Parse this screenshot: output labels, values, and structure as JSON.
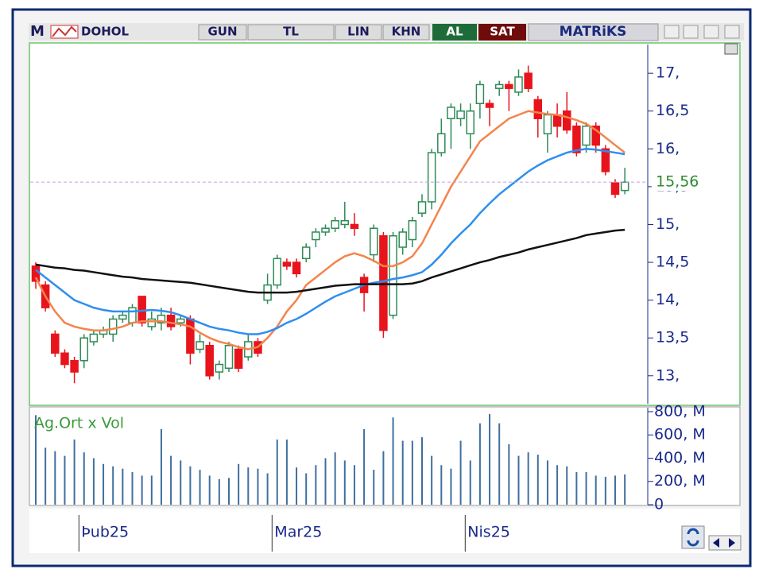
{
  "toolbar": {
    "logo": "M",
    "symbol": "DOHOL",
    "buttons": [
      "GUN",
      "TL",
      "LIN",
      "KHN"
    ],
    "buy": "AL",
    "sell": "SAT",
    "brand": "MATRiKS"
  },
  "chart_data": [
    {
      "type": "candlestick",
      "categories": [
        null,
        null,
        "Þub25",
        null,
        null,
        null,
        null,
        null,
        null,
        null,
        null,
        null,
        null,
        null,
        null,
        null,
        null,
        null,
        null,
        null,
        null,
        null,
        "Mar25",
        null,
        null,
        null,
        null,
        null,
        null,
        null,
        null,
        null,
        null,
        null,
        null,
        null,
        null,
        null,
        null,
        null,
        null,
        null,
        "Nis25",
        null,
        null,
        null,
        null,
        null,
        null,
        null,
        null,
        null,
        null,
        null,
        null,
        null,
        null,
        null,
        null,
        null,
        null,
        null
      ],
      "ohlc": [
        [
          14.45,
          14.5,
          14.15,
          14.25
        ],
        [
          14.2,
          14.25,
          13.85,
          13.9
        ],
        [
          13.55,
          13.6,
          13.25,
          13.3
        ],
        [
          13.3,
          13.35,
          13.1,
          13.15
        ],
        [
          13.2,
          13.25,
          12.9,
          13.05
        ],
        [
          13.2,
          13.55,
          13.1,
          13.5
        ],
        [
          13.45,
          13.6,
          13.4,
          13.55
        ],
        [
          13.55,
          13.65,
          13.5,
          13.6
        ],
        [
          13.55,
          13.8,
          13.45,
          13.75
        ],
        [
          13.75,
          13.85,
          13.7,
          13.8
        ],
        [
          13.7,
          13.95,
          13.65,
          13.9
        ],
        [
          14.05,
          14.05,
          13.65,
          13.7
        ],
        [
          13.65,
          13.85,
          13.6,
          13.75
        ],
        [
          13.7,
          13.9,
          13.6,
          13.8
        ],
        [
          13.8,
          13.9,
          13.6,
          13.65
        ],
        [
          13.7,
          13.8,
          13.65,
          13.75
        ],
        [
          13.75,
          13.8,
          13.15,
          13.3
        ],
        [
          13.35,
          13.55,
          13.3,
          13.45
        ],
        [
          13.4,
          13.45,
          12.95,
          13.0
        ],
        [
          13.05,
          13.2,
          12.95,
          13.15
        ],
        [
          13.1,
          13.45,
          13.05,
          13.4
        ],
        [
          13.35,
          13.4,
          13.05,
          13.1
        ],
        [
          13.25,
          13.55,
          13.2,
          13.45
        ],
        [
          13.45,
          13.5,
          13.25,
          13.3
        ],
        [
          14.0,
          14.35,
          13.95,
          14.2
        ],
        [
          14.2,
          14.6,
          14.15,
          14.55
        ],
        [
          14.5,
          14.55,
          14.4,
          14.45
        ],
        [
          14.5,
          14.55,
          14.3,
          14.35
        ],
        [
          14.55,
          14.75,
          14.5,
          14.7
        ],
        [
          14.8,
          14.95,
          14.7,
          14.9
        ],
        [
          14.9,
          15.0,
          14.85,
          14.95
        ],
        [
          14.95,
          15.1,
          14.9,
          15.05
        ],
        [
          15.0,
          15.3,
          14.95,
          15.05
        ],
        [
          15.0,
          15.15,
          14.85,
          14.95
        ],
        [
          14.3,
          14.35,
          13.85,
          14.1
        ],
        [
          14.6,
          15.0,
          14.5,
          14.95
        ],
        [
          14.85,
          14.9,
          13.5,
          13.6
        ],
        [
          13.8,
          14.9,
          13.75,
          14.85
        ],
        [
          14.7,
          14.95,
          14.6,
          14.9
        ],
        [
          14.8,
          15.1,
          14.7,
          15.05
        ],
        [
          15.15,
          15.4,
          15.1,
          15.3
        ],
        [
          15.3,
          16.0,
          15.2,
          15.95
        ],
        [
          15.95,
          16.4,
          15.9,
          16.2
        ],
        [
          16.4,
          16.6,
          16.0,
          16.55
        ],
        [
          16.4,
          16.6,
          16.3,
          16.5
        ],
        [
          16.2,
          16.6,
          16.0,
          16.5
        ],
        [
          16.6,
          16.9,
          16.4,
          16.85
        ],
        [
          16.6,
          16.65,
          16.3,
          16.55
        ],
        [
          16.8,
          16.9,
          16.7,
          16.85
        ],
        [
          16.85,
          16.9,
          16.5,
          16.8
        ],
        [
          16.75,
          17.05,
          16.7,
          16.95
        ],
        [
          17.0,
          17.1,
          16.75,
          16.8
        ],
        [
          16.65,
          16.7,
          16.15,
          16.4
        ],
        [
          16.2,
          16.5,
          15.95,
          16.45
        ],
        [
          16.45,
          16.6,
          16.15,
          16.3
        ],
        [
          16.5,
          16.75,
          16.2,
          16.25
        ],
        [
          16.3,
          16.35,
          15.9,
          15.95
        ],
        [
          16.05,
          16.35,
          15.95,
          16.3
        ],
        [
          16.3,
          16.35,
          15.95,
          16.05
        ],
        [
          16.0,
          16.05,
          15.65,
          15.7
        ],
        [
          15.55,
          15.6,
          15.35,
          15.4
        ],
        [
          15.45,
          15.75,
          15.4,
          15.56
        ]
      ],
      "up_color": "#2e8b57",
      "down_color": "#e8141c",
      "lines": [
        {
          "color": "#f4844c",
          "values": [
            14.3,
            14.05,
            13.85,
            13.7,
            13.65,
            13.62,
            13.6,
            13.6,
            13.62,
            13.65,
            13.7,
            13.72,
            13.72,
            13.72,
            13.7,
            13.68,
            13.65,
            13.57,
            13.5,
            13.45,
            13.42,
            13.38,
            13.35,
            13.38,
            13.5,
            13.65,
            13.85,
            14.0,
            14.2,
            14.3,
            14.4,
            14.5,
            14.58,
            14.62,
            14.58,
            14.52,
            14.45,
            14.45,
            14.5,
            14.58,
            14.75,
            15.0,
            15.25,
            15.5,
            15.7,
            15.9,
            16.1,
            16.2,
            16.3,
            16.4,
            16.45,
            16.5,
            16.48,
            16.46,
            16.45,
            16.42,
            16.38,
            16.33,
            16.25,
            16.15,
            16.05,
            15.95
          ]
        },
        {
          "color": "#2f8ef0",
          "values": [
            14.4,
            14.3,
            14.2,
            14.1,
            14.0,
            13.95,
            13.9,
            13.87,
            13.85,
            13.85,
            13.85,
            13.86,
            13.87,
            13.86,
            13.84,
            13.8,
            13.75,
            13.7,
            13.65,
            13.62,
            13.6,
            13.57,
            13.55,
            13.55,
            13.58,
            13.63,
            13.7,
            13.75,
            13.82,
            13.9,
            13.98,
            14.05,
            14.1,
            14.15,
            14.2,
            14.23,
            14.25,
            14.28,
            14.3,
            14.33,
            14.37,
            14.47,
            14.6,
            14.75,
            14.88,
            15.0,
            15.15,
            15.28,
            15.4,
            15.5,
            15.6,
            15.7,
            15.78,
            15.85,
            15.9,
            15.95,
            15.98,
            16.0,
            15.99,
            15.97,
            15.95,
            15.93
          ]
        },
        {
          "color": "#111111",
          "values": [
            14.47,
            14.45,
            14.43,
            14.42,
            14.4,
            14.39,
            14.37,
            14.35,
            14.33,
            14.31,
            14.3,
            14.28,
            14.27,
            14.26,
            14.25,
            14.24,
            14.23,
            14.21,
            14.19,
            14.17,
            14.15,
            14.13,
            14.11,
            14.1,
            14.1,
            14.1,
            14.1,
            14.11,
            14.13,
            14.15,
            14.17,
            14.19,
            14.2,
            14.21,
            14.21,
            14.21,
            14.21,
            14.21,
            14.21,
            14.22,
            14.25,
            14.3,
            14.34,
            14.38,
            14.42,
            14.46,
            14.5,
            14.53,
            14.57,
            14.6,
            14.63,
            14.67,
            14.7,
            14.73,
            14.76,
            14.79,
            14.82,
            14.86,
            14.88,
            14.9,
            14.92,
            14.93
          ]
        }
      ],
      "last_price": {
        "value": 15.56,
        "label": "15,56"
      },
      "ylim": [
        12.63,
        17.38
      ],
      "yticks": [
        {
          "value": 13,
          "label": "13,"
        },
        {
          "value": 13.5,
          "label": "13,5"
        },
        {
          "value": 14,
          "label": "14,"
        },
        {
          "value": 14.5,
          "label": "14,5"
        },
        {
          "value": 15,
          "label": "15,"
        },
        {
          "value": 15.5,
          "label": "15,5"
        },
        {
          "value": 16,
          "label": "16,"
        },
        {
          "value": 16.5,
          "label": "16,5"
        },
        {
          "value": 17,
          "label": "17,"
        }
      ]
    },
    {
      "type": "bar",
      "title": "Ag.Ort x Vol",
      "color": "#3f6f9f",
      "values": [
        770,
        490,
        460,
        420,
        560,
        450,
        400,
        350,
        330,
        310,
        280,
        250,
        250,
        650,
        420,
        380,
        330,
        300,
        250,
        220,
        230,
        350,
        320,
        310,
        270,
        560,
        560,
        320,
        270,
        340,
        400,
        450,
        380,
        340,
        650,
        300,
        460,
        750,
        550,
        550,
        580,
        420,
        340,
        310,
        550,
        380,
        700,
        780,
        700,
        520,
        420,
        450,
        430,
        380,
        340,
        330,
        280,
        280,
        250,
        240,
        250,
        260
      ],
      "ylim": [
        0,
        834
      ],
      "yticks": [
        0,
        {
          "value": 200,
          "label": "200, M"
        },
        {
          "value": 400,
          "label": "400, M"
        },
        {
          "value": 600,
          "label": "600, M"
        },
        {
          "value": 800,
          "label": "800, M"
        }
      ]
    }
  ]
}
